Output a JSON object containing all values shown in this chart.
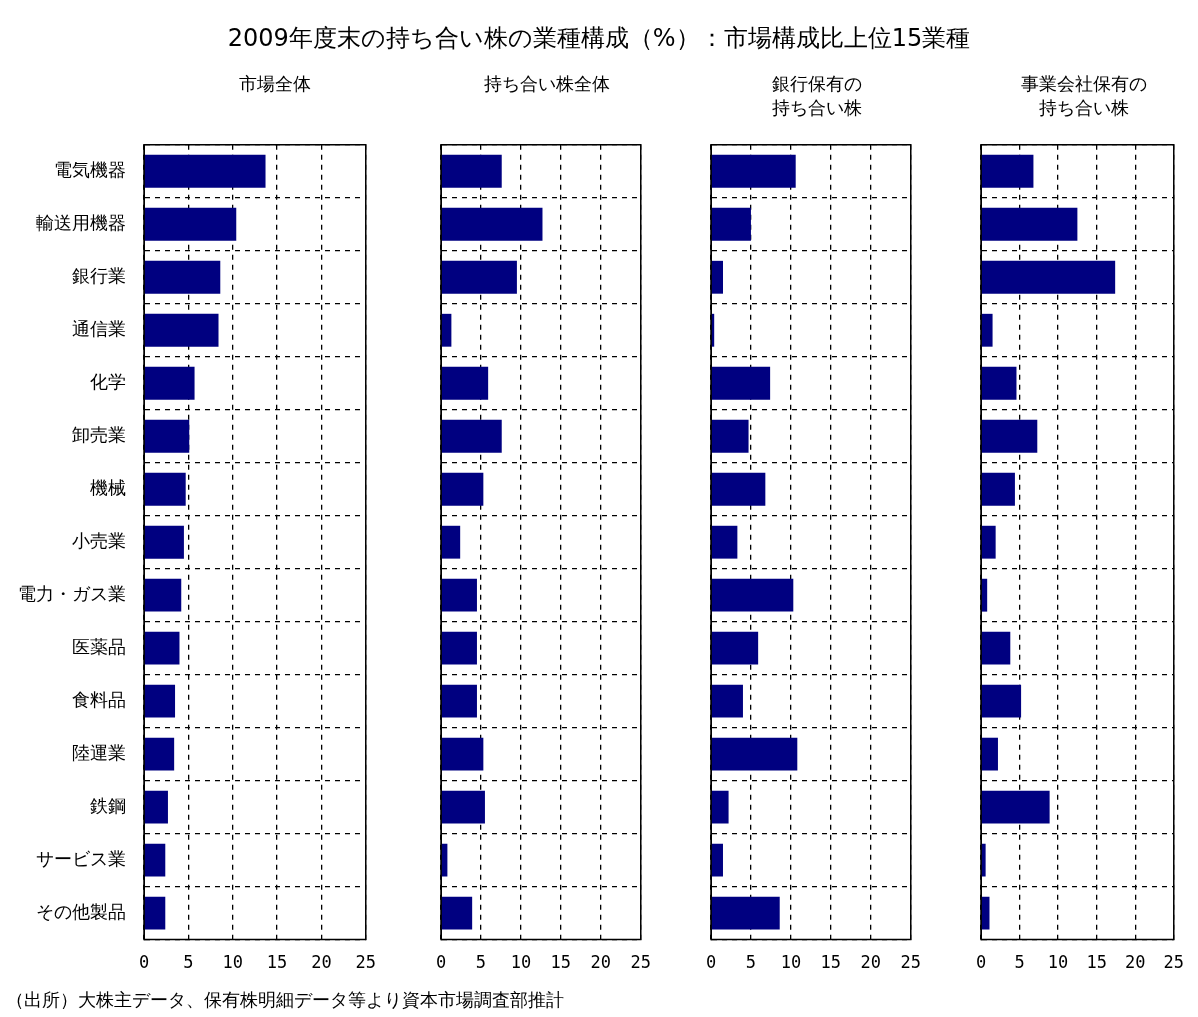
{
  "chart_data": [
    {
      "type": "bar",
      "orientation": "horizontal",
      "title": "2009年度末の持ち合い株の業種構成（%）：市場構成比上位15業種",
      "subtitle": "市場全体",
      "annotations": [
        "（出所）大株主データ、保有株明細データ等より資本市場調査部推計"
      ],
      "categories": [
        "電気機器",
        "輸送用機器",
        "銀行業",
        "通信業",
        "化学",
        "卸売業",
        "機械",
        "小売業",
        "電力・ガス業",
        "医薬品",
        "食料品",
        "陸運業",
        "鉄鋼",
        "サービス業",
        "その他製品"
      ],
      "values": [
        13.7,
        10.4,
        8.6,
        8.4,
        5.7,
        5.1,
        4.7,
        4.5,
        4.2,
        4.0,
        3.5,
        3.4,
        2.7,
        2.4,
        2.4
      ],
      "color": "#000080",
      "xlim": [
        0,
        25
      ],
      "xticks": [
        0,
        5,
        10,
        15,
        20,
        25
      ],
      "grid": true
    },
    {
      "type": "bar",
      "orientation": "horizontal",
      "subtitle": "持ち合い株全体",
      "values": [
        7.6,
        12.7,
        9.5,
        1.3,
        5.9,
        7.6,
        5.3,
        2.4,
        4.5,
        4.5,
        4.5,
        5.3,
        5.5,
        0.8,
        3.9
      ],
      "color": "#000080",
      "xlim": [
        0,
        25
      ],
      "xticks": [
        0,
        5,
        10,
        15,
        20,
        25
      ],
      "grid": true,
      "tick_labels": "x"
    },
    {
      "type": "bar",
      "orientation": "horizontal",
      "subtitle": "銀行保有の持ち合い株",
      "values": [
        10.6,
        5.0,
        1.5,
        0.4,
        7.4,
        4.7,
        6.8,
        3.3,
        10.3,
        5.9,
        4.0,
        10.8,
        2.2,
        1.5,
        8.6
      ],
      "color": "#000080",
      "xlim": [
        0,
        25
      ],
      "xticks": [
        0,
        5,
        10,
        15,
        20,
        25
      ],
      "grid": true,
      "tick_labels": "x"
    },
    {
      "type": "bar",
      "orientation": "horizontal",
      "subtitle": "事業会社保有の持ち合い株",
      "values": [
        6.8,
        12.5,
        17.4,
        1.5,
        4.6,
        7.3,
        4.4,
        1.9,
        0.8,
        3.8,
        5.2,
        2.2,
        8.9,
        0.6,
        1.1
      ],
      "color": "#000080",
      "xlim": [
        0,
        25
      ],
      "xticks": [
        0,
        5,
        10,
        15,
        20,
        25
      ],
      "grid": true,
      "tick_labels": "x"
    }
  ]
}
